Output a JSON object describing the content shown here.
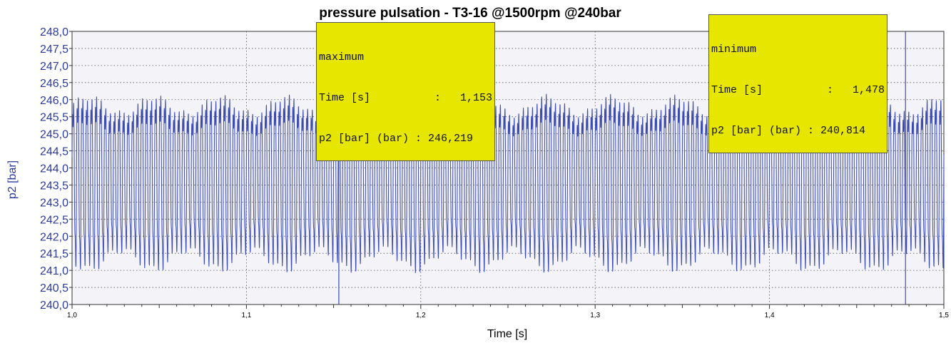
{
  "chart_data": {
    "type": "line",
    "title": "pressure pulsation - T3-16 @1500rpm @240bar",
    "xlabel": "Time [s]",
    "ylabel": "p2 [bar]",
    "xlim": [
      1.0,
      1.5
    ],
    "ylim": [
      240.0,
      248.0
    ],
    "x_ticks": [
      "1,0",
      "1,1",
      "1,2",
      "1,3",
      "1,4",
      "1,5"
    ],
    "y_ticks": [
      "248,0",
      "247,5",
      "247,0",
      "246,5",
      "246,0",
      "245,5",
      "245,0",
      "244,5",
      "244,0",
      "243,5",
      "243,0",
      "242,5",
      "242,0",
      "241,5",
      "241,0",
      "240,5",
      "240,0"
    ],
    "grid": true,
    "series_color": "#3b4bb0",
    "signal": {
      "description_of_shape": "periodic pressure ripple",
      "x_start": 1.0,
      "x_end": 1.5,
      "mean": 243.75,
      "amplitude": 2.6,
      "cycles": 190
    },
    "cursors": [
      {
        "title": "maximum",
        "time_label": "Time [s]",
        "time_value": "1,153",
        "value_label": "p2 [bar] (bar)",
        "value_value": "246,219",
        "x": 1.153
      },
      {
        "title": "minimum",
        "time_label": "Time [s]",
        "time_value": "1,478",
        "value_label": "p2 [bar] (bar)",
        "value_value": "240,814",
        "x": 1.478
      }
    ]
  }
}
